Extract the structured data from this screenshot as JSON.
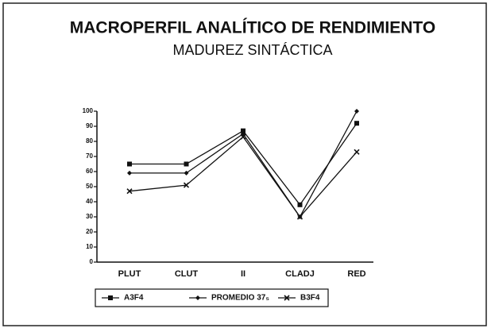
{
  "chart_data": {
    "type": "line",
    "title": "MACROPERFIL ANALÍTICO DE RENDIMIENTO",
    "subtitle": "MADUREZ SINTÁCTICA",
    "categories": [
      "PLUT",
      "CLUT",
      "II",
      "CLADJ",
      "RED"
    ],
    "series": [
      {
        "name": "A3F4",
        "color": "#111111",
        "marker": "square",
        "values": [
          65,
          65,
          87,
          38,
          92
        ]
      },
      {
        "name": "PROMEDIO 37₅",
        "color": "#111111",
        "marker": "diamond",
        "values": [
          59,
          59,
          85,
          30,
          100
        ]
      },
      {
        "name": "B3F4",
        "color": "#111111",
        "marker": "x",
        "values": [
          47,
          51,
          83,
          30,
          73
        ]
      }
    ],
    "ylim": [
      0,
      100
    ],
    "yticks": [
      0,
      10,
      20,
      30,
      40,
      50,
      60,
      70,
      80,
      90,
      100
    ]
  }
}
